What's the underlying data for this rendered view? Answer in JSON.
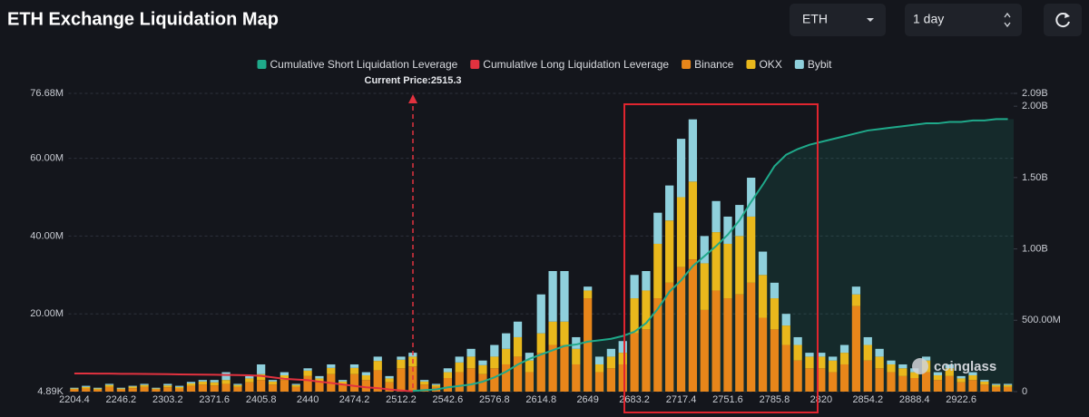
{
  "controls": {
    "asset": "ETH",
    "period": "1 day"
  },
  "chart_data": {
    "type": "bar",
    "title": "ETH Exchange Liquidation Map",
    "annotation": "Current Price:2515.3",
    "watermark": "coinglass",
    "stacked": true,
    "legend": "top",
    "grid": true,
    "categories": [
      "2204.4",
      null,
      null,
      null,
      "2246.2",
      null,
      null,
      null,
      "2303.2",
      null,
      null,
      null,
      "2371.6",
      null,
      null,
      null,
      "2405.8",
      null,
      null,
      null,
      "2440",
      null,
      null,
      null,
      "2474.2",
      null,
      null,
      null,
      "2512.2",
      null,
      null,
      null,
      "2542.6",
      null,
      null,
      null,
      "2576.8",
      null,
      null,
      null,
      "2614.8",
      null,
      null,
      null,
      "2649",
      null,
      null,
      null,
      "2683.2",
      null,
      null,
      null,
      "2717.4",
      null,
      null,
      null,
      "2751.6",
      null,
      null,
      null,
      "2785.8",
      null,
      null,
      null,
      "2820",
      null,
      null,
      null,
      "2854.2",
      null,
      null,
      null,
      "2888.4",
      null,
      null,
      null,
      "2922.6",
      null,
      null,
      null,
      null
    ],
    "ylim": [
      4890,
      76680000
    ],
    "yticks": [
      {
        "value": 4890,
        "label": "4.89K"
      },
      {
        "value": 20000000,
        "label": "20.00M"
      },
      {
        "value": 40000000,
        "label": "40.00M"
      },
      {
        "value": 60000000,
        "label": "60.00M"
      },
      {
        "value": 76680000,
        "label": "76.68M"
      }
    ],
    "y2lim": [
      0,
      2090000000
    ],
    "y2ticks": [
      0,
      {
        "value": 500000000,
        "label": "500.00M"
      },
      {
        "value": 1000000000,
        "label": "1.00B"
      },
      {
        "value": 1500000000,
        "label": "1.50B"
      },
      {
        "value": 2000000000,
        "label": "2.00B"
      },
      {
        "value": 2090000000,
        "label": "2.09B"
      }
    ],
    "series": [
      {
        "name": "Cumulative Short Liquidation Leverage",
        "type": "line",
        "axis": "y2",
        "color": "#1fa98a",
        "values": [
          null,
          null,
          null,
          null,
          null,
          null,
          null,
          null,
          null,
          null,
          null,
          null,
          null,
          null,
          null,
          null,
          null,
          null,
          null,
          null,
          null,
          null,
          null,
          null,
          null,
          null,
          null,
          null,
          null,
          5000000,
          10000000,
          15000000,
          30000000,
          40000000,
          50000000,
          70000000,
          100000000,
          140000000,
          190000000,
          230000000,
          260000000,
          290000000,
          320000000,
          330000000,
          350000000,
          360000000,
          370000000,
          390000000,
          420000000,
          480000000,
          580000000,
          700000000,
          780000000,
          880000000,
          950000000,
          1020000000,
          1100000000,
          1200000000,
          1330000000,
          1450000000,
          1580000000,
          1660000000,
          1700000000,
          1730000000,
          1750000000,
          1770000000,
          1790000000,
          1810000000,
          1830000000,
          1840000000,
          1850000000,
          1860000000,
          1870000000,
          1880000000,
          1880000000,
          1890000000,
          1890000000,
          1900000000,
          1900000000,
          1910000000,
          1910000000
        ]
      },
      {
        "name": "Cumulative Long Liquidation Leverage",
        "type": "line",
        "axis": "y2",
        "color": "#e2323f",
        "values": [
          127000000,
          127000000,
          126000000,
          126000000,
          125000000,
          125000000,
          124000000,
          123000000,
          122000000,
          121000000,
          120000000,
          119000000,
          118000000,
          117000000,
          116000000,
          114000000,
          110000000,
          100000000,
          90000000,
          85000000,
          80000000,
          70000000,
          60000000,
          50000000,
          40000000,
          30000000,
          25000000,
          15000000,
          8000000,
          2000000,
          null,
          null,
          null,
          null,
          null,
          null,
          null,
          null,
          null,
          null,
          null,
          null,
          null,
          null,
          null,
          null,
          null,
          null,
          null,
          null,
          null,
          null,
          null,
          null,
          null,
          null,
          null,
          null,
          null,
          null,
          null,
          null,
          null,
          null,
          null,
          null,
          null,
          null,
          null,
          null,
          null,
          null,
          null,
          null,
          null,
          null,
          null,
          null,
          null,
          null,
          null
        ]
      },
      {
        "name": "Binance",
        "type": "bar",
        "color": "#e8861a",
        "values": [
          600000,
          800000,
          500000,
          1200000,
          600000,
          900000,
          1200000,
          600000,
          1100000,
          800000,
          1500000,
          1800000,
          1600000,
          2000000,
          1200000,
          2400000,
          3000000,
          1800000,
          3000000,
          1200000,
          4000000,
          2400000,
          4500000,
          1800000,
          4500000,
          3000000,
          5500000,
          2400000,
          6000000,
          6500000,
          1800000,
          1200000,
          3500000,
          5000000,
          6000000,
          4500000,
          6000000,
          7000000,
          9000000,
          5000000,
          10000000,
          12000000,
          12000000,
          7000000,
          24000000,
          5000000,
          6000000,
          7000000,
          15000000,
          16000000,
          24000000,
          28000000,
          32000000,
          34000000,
          21000000,
          26000000,
          24000000,
          25000000,
          28000000,
          19000000,
          16000000,
          12000000,
          8000000,
          6000000,
          6000000,
          5000000,
          7000000,
          22000000,
          8000000,
          6000000,
          5000000,
          4000000,
          3500000,
          5000000,
          3000000,
          4000000,
          2400000,
          3000000,
          1800000,
          1200000,
          1200000
        ]
      },
      {
        "name": "OKX",
        "type": "bar",
        "color": "#e9b81c",
        "values": [
          200000,
          400000,
          300000,
          500000,
          200000,
          400000,
          500000,
          200000,
          500000,
          400000,
          600000,
          800000,
          800000,
          1000000,
          500000,
          1000000,
          1500000,
          800000,
          1200000,
          500000,
          1400000,
          1000000,
          1600000,
          800000,
          1600000,
          1200000,
          2400000,
          1000000,
          2200000,
          2500000,
          800000,
          500000,
          1500000,
          2500000,
          3000000,
          2300000,
          3000000,
          4000000,
          5000000,
          3000000,
          5000000,
          6000000,
          6000000,
          4000000,
          2000000,
          2000000,
          3000000,
          3000000,
          9000000,
          10000000,
          14000000,
          16000000,
          18000000,
          20000000,
          12000000,
          15000000,
          14000000,
          15000000,
          17000000,
          11000000,
          8000000,
          5000000,
          4000000,
          3000000,
          3000000,
          3000000,
          3000000,
          3000000,
          4000000,
          3000000,
          2000000,
          2000000,
          1500000,
          3000000,
          1200000,
          2000000,
          1000000,
          1200000,
          800000,
          500000,
          500000
        ]
      },
      {
        "name": "Bybit",
        "type": "bar",
        "color": "#8fd0dc",
        "values": [
          200000,
          300000,
          200000,
          300000,
          200000,
          200000,
          300000,
          200000,
          400000,
          300000,
          400000,
          400000,
          600000,
          2000000,
          300000,
          600000,
          2500000,
          400000,
          800000,
          300000,
          600000,
          600000,
          900000,
          400000,
          900000,
          800000,
          1100000,
          600000,
          800000,
          1000000,
          400000,
          300000,
          1000000,
          1500000,
          2000000,
          1200000,
          3000000,
          4000000,
          4000000,
          2000000,
          10000000,
          13000000,
          13000000,
          3000000,
          1000000,
          2000000,
          2000000,
          3000000,
          6000000,
          5000000,
          8000000,
          9000000,
          15000000,
          16000000,
          7000000,
          8000000,
          7000000,
          8000000,
          10000000,
          6000000,
          4000000,
          3000000,
          2000000,
          1000000,
          1000000,
          1000000,
          2000000,
          2000000,
          2000000,
          2000000,
          1000000,
          1000000,
          1000000,
          1000000,
          800000,
          1000000,
          600000,
          800000,
          400000,
          300000,
          300000
        ]
      }
    ]
  }
}
